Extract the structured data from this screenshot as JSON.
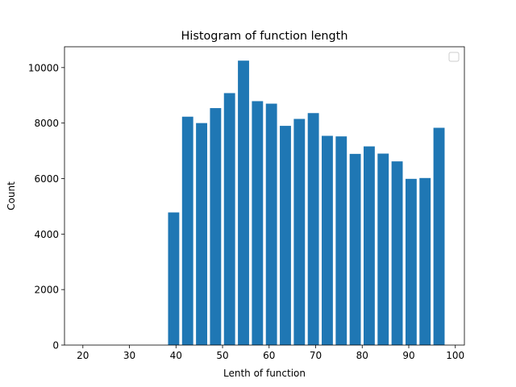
{
  "chart_data": {
    "type": "bar",
    "title": "Histogram of function length",
    "xlabel": "Lenth of function",
    "ylabel": "Count",
    "xlim": [
      16.05,
      101.95
    ],
    "ylim": [
      0,
      10750
    ],
    "xticks": [
      20,
      30,
      40,
      50,
      60,
      70,
      80,
      90,
      100
    ],
    "yticks": [
      0,
      2000,
      4000,
      6000,
      8000,
      10000
    ],
    "bar_width": 2.4,
    "series": [
      {
        "color": "#1f77b4",
        "x": [
          39.5,
          42.5,
          45.5,
          48.5,
          51.5,
          54.5,
          57.5,
          60.5,
          63.5,
          66.5,
          69.5,
          72.5,
          75.5,
          78.5,
          81.5,
          84.5,
          87.5,
          90.5,
          93.5,
          96.5
        ],
        "values": [
          4780,
          8230,
          8000,
          8540,
          9080,
          10250,
          8790,
          8700,
          7900,
          8150,
          8360,
          7540,
          7520,
          6890,
          7160,
          6900,
          6620,
          5990,
          6020,
          7830
        ]
      }
    ],
    "legend": {
      "position": "upper right",
      "entries": []
    },
    "grid": false
  }
}
